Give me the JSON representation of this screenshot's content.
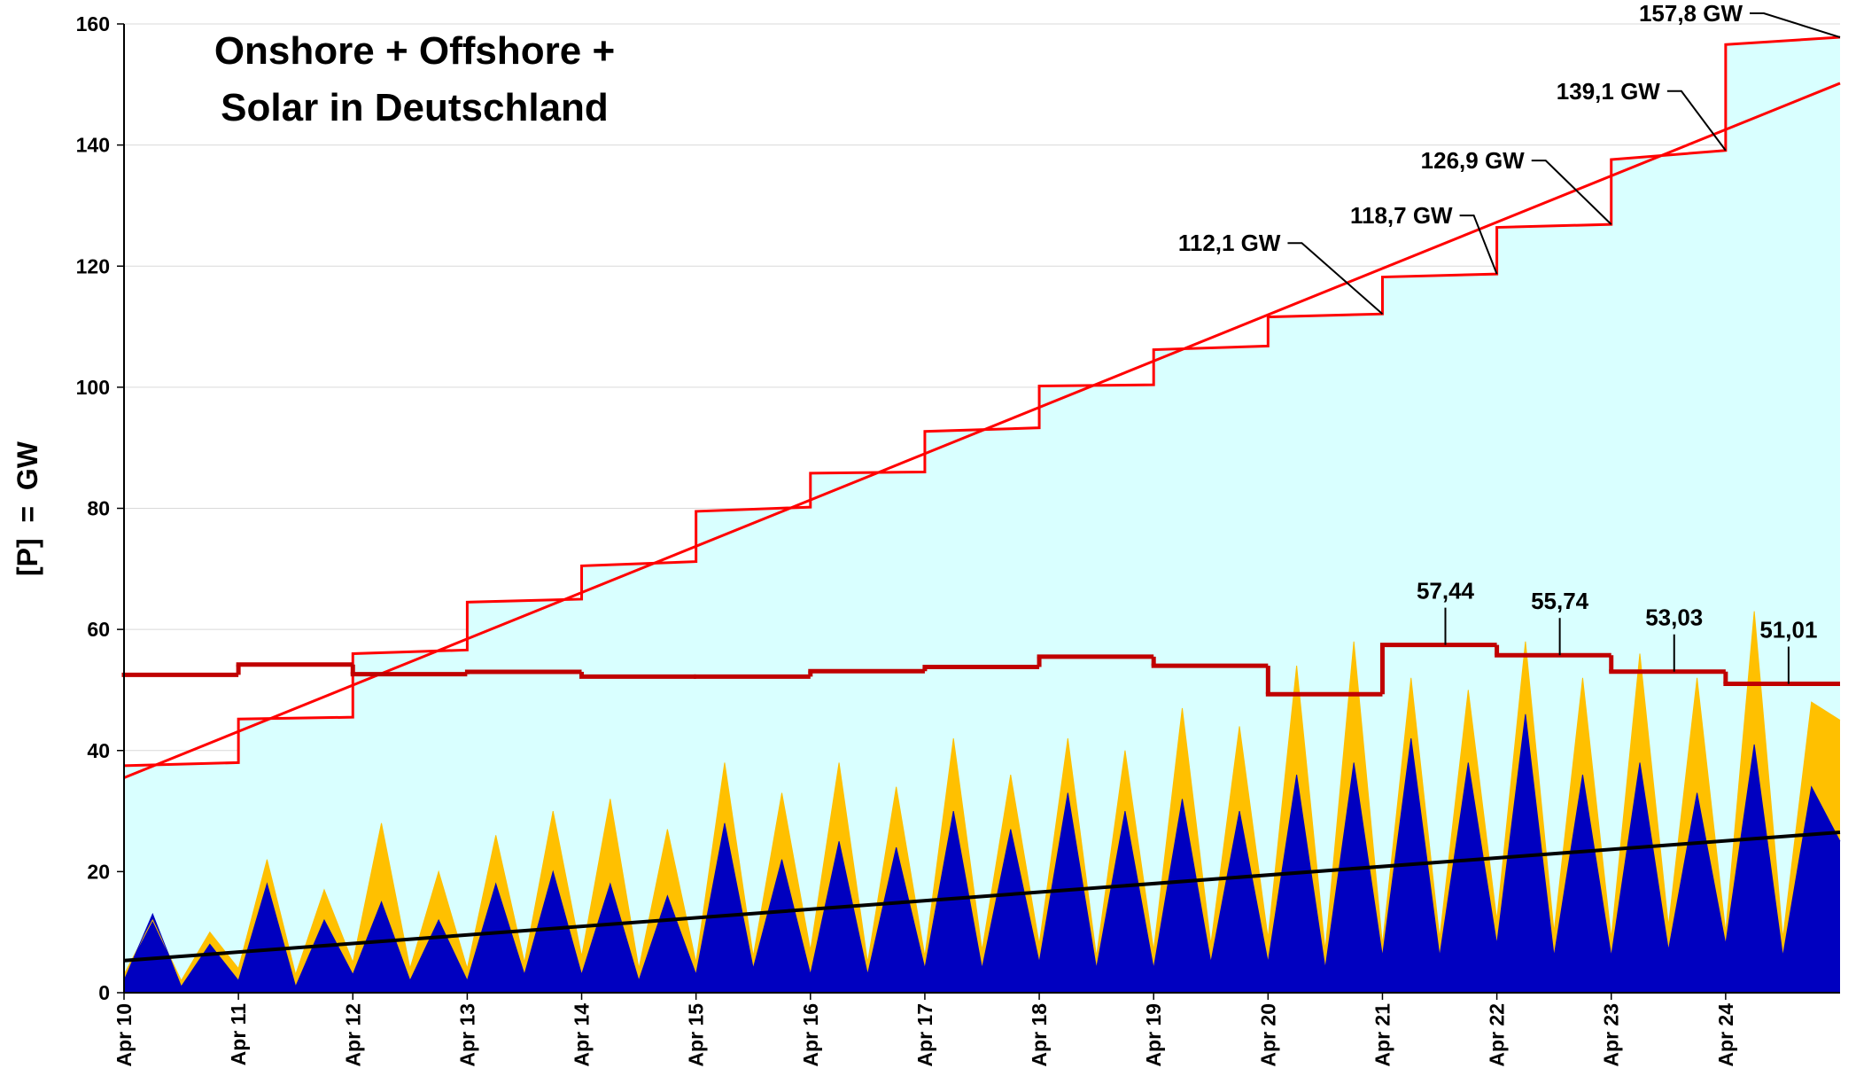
{
  "chart_data": {
    "type": "line",
    "title": [
      "Onshore + Offshore +",
      "Solar in Deutschland"
    ],
    "ylabel": "[P]  =  GW",
    "xlim": [
      0,
      15
    ],
    "xticks": [
      {
        "value": 0,
        "label": "Apr 10"
      },
      {
        "value": 1,
        "label": "Apr 11"
      },
      {
        "value": 2,
        "label": "Apr 12"
      },
      {
        "value": 3,
        "label": "Apr 13"
      },
      {
        "value": 4,
        "label": "Apr 14"
      },
      {
        "value": 5,
        "label": "Apr 15"
      },
      {
        "value": 6,
        "label": "Apr 16"
      },
      {
        "value": 7,
        "label": "Apr 17"
      },
      {
        "value": 8,
        "label": "Apr 18"
      },
      {
        "value": 9,
        "label": "Apr 19"
      },
      {
        "value": 10,
        "label": "Apr 20"
      },
      {
        "value": 11,
        "label": "Apr 21"
      },
      {
        "value": 12,
        "label": "Apr 22"
      },
      {
        "value": 13,
        "label": "Apr 23"
      },
      {
        "value": 14,
        "label": "Apr 24"
      }
    ],
    "ylim": [
      0,
      160
    ],
    "yticks": [
      0,
      20,
      40,
      60,
      80,
      100,
      120,
      140,
      160
    ],
    "grid": true,
    "series": [
      {
        "color": "#ff0000",
        "fill": "#d9ffff",
        "width": 3,
        "x": [
          0,
          1,
          1,
          2,
          2,
          3,
          3,
          4,
          4,
          5,
          5,
          6,
          6,
          7,
          7,
          8,
          8,
          9,
          9,
          10,
          10,
          11,
          11,
          12,
          12,
          13,
          13,
          14,
          14,
          15
        ],
        "values": [
          37.5,
          38.0,
          45.2,
          45.5,
          56.0,
          56.6,
          64.5,
          65.0,
          70.5,
          71.2,
          79.5,
          80.2,
          85.8,
          86.0,
          92.7,
          93.3,
          100.2,
          100.4,
          106.2,
          106.8,
          111.6,
          112.1,
          118.2,
          118.7,
          126.4,
          126.9,
          137.6,
          139.1,
          156.6,
          157.8
        ]
      },
      {
        "color": "#ff0000",
        "width": 3,
        "x": [
          0,
          15
        ],
        "values": [
          35.5,
          150.2
        ]
      },
      {
        "color": "#ffc000",
        "fill": "#ffc000",
        "width": 1,
        "x": [
          0,
          0.25,
          0.5,
          0.75,
          1,
          1.25,
          1.5,
          1.75,
          2,
          2.25,
          2.5,
          2.75,
          3,
          3.25,
          3.5,
          3.75,
          4,
          4.25,
          4.5,
          4.75,
          5,
          5.25,
          5.5,
          5.75,
          6,
          6.25,
          6.5,
          6.75,
          7,
          7.25,
          7.5,
          7.75,
          8,
          8.25,
          8.5,
          8.75,
          9,
          9.25,
          9.5,
          9.75,
          10,
          10.25,
          10.5,
          10.75,
          11,
          11.25,
          11.5,
          11.75,
          12,
          12.25,
          12.5,
          12.75,
          13,
          13.25,
          13.5,
          13.75,
          14,
          14.25,
          14.5,
          14.75,
          15
        ],
        "values": [
          3,
          12,
          2,
          10,
          4,
          22,
          3,
          17,
          5,
          28,
          4,
          20,
          4,
          26,
          5,
          30,
          6,
          32,
          4,
          27,
          5,
          38,
          6,
          33,
          7,
          38,
          5,
          34,
          6,
          42,
          7,
          36,
          8,
          42,
          6,
          40,
          7,
          47,
          8,
          44,
          9,
          54,
          7,
          58,
          8,
          52,
          9,
          50,
          12,
          58,
          10,
          52,
          9,
          56,
          11,
          52,
          10,
          63,
          9,
          48,
          45
        ]
      },
      {
        "color": "#0000c0",
        "fill": "#0000c0",
        "width": 1,
        "x": [
          0,
          0.25,
          0.5,
          0.75,
          1,
          1.25,
          1.5,
          1.75,
          2,
          2.25,
          2.5,
          2.75,
          3,
          3.25,
          3.5,
          3.75,
          4,
          4.25,
          4.5,
          4.75,
          5,
          5.25,
          5.5,
          5.75,
          6,
          6.25,
          6.5,
          6.75,
          7,
          7.25,
          7.5,
          7.75,
          8,
          8.25,
          8.5,
          8.75,
          9,
          9.25,
          9.5,
          9.75,
          10,
          10.25,
          10.5,
          10.75,
          11,
          11.25,
          11.5,
          11.75,
          12,
          12.25,
          12.5,
          12.75,
          13,
          13.25,
          13.5,
          13.75,
          14,
          14.25,
          14.5,
          14.75,
          15
        ],
        "values": [
          2,
          13,
          1,
          8,
          2,
          18,
          1,
          12,
          3,
          15,
          2,
          12,
          2,
          18,
          3,
          20,
          3,
          18,
          2,
          16,
          3,
          28,
          4,
          22,
          3,
          25,
          3,
          24,
          4,
          30,
          4,
          27,
          5,
          33,
          4,
          30,
          4,
          32,
          5,
          30,
          5,
          36,
          4,
          38,
          6,
          42,
          6,
          38,
          8,
          46,
          6,
          36,
          6,
          38,
          7,
          33,
          8,
          41,
          6,
          34,
          25
        ]
      },
      {
        "color": "#000000",
        "width": 4,
        "x": [
          0,
          15
        ],
        "values": [
          5.3,
          26.5
        ]
      },
      {
        "color": "#c00000",
        "width": 5,
        "step": true,
        "x": [
          0,
          1,
          2,
          3,
          4,
          5,
          6,
          7,
          8,
          9,
          10,
          11,
          12,
          13,
          14
        ],
        "values": [
          52.5,
          54.2,
          52.6,
          53.0,
          52.2,
          52.2,
          53.1,
          53.8,
          55.5,
          54.0,
          49.3,
          57.44,
          55.74,
          53.03,
          51.01
        ],
        "value_labels": [
          null,
          null,
          null,
          null,
          null,
          null,
          null,
          null,
          null,
          null,
          null,
          "57,44",
          "55,74",
          "53,03",
          "51,01"
        ]
      }
    ],
    "annotations": [
      {
        "text": "112,1 GW",
        "x": 11,
        "y": 112.1
      },
      {
        "text": "118,7 GW",
        "x": 12,
        "y": 118.7
      },
      {
        "text": "126,9 GW",
        "x": 13,
        "y": 126.9
      },
      {
        "text": "139,1 GW",
        "x": 14,
        "y": 139.1
      },
      {
        "text": "157,8 GW",
        "x": 15,
        "y": 157.8
      }
    ]
  }
}
